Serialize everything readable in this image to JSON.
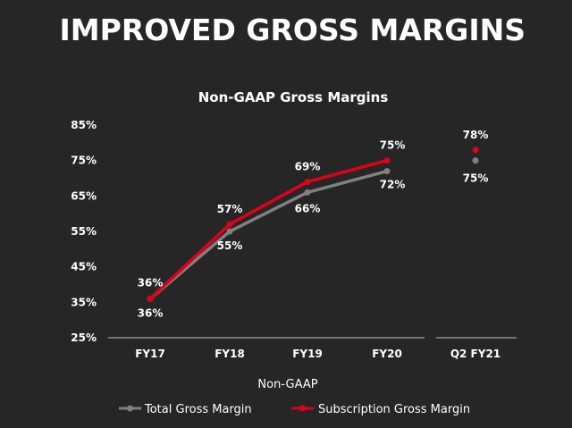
{
  "slide": {
    "title": "IMPROVED GROSS MARGINS"
  },
  "chart_data": {
    "type": "line",
    "title": "Non-GAAP Gross Margins",
    "xlabel": "Non-GAAP",
    "ylabel": "",
    "categories": [
      "FY17",
      "FY18",
      "FY19",
      "FY20",
      "Q2 FY21"
    ],
    "ylim": [
      25,
      85
    ],
    "yticks": [
      "85%",
      "75%",
      "65%",
      "55%",
      "45%",
      "35%",
      "25%"
    ],
    "legend_position": "bottom",
    "grid": false,
    "series": [
      {
        "name": "Total Gross Margin",
        "color": "#808080",
        "values": [
          36,
          55,
          66,
          72,
          75
        ],
        "labels": [
          "36%",
          "55%",
          "66%",
          "72%",
          "75%"
        ],
        "label_position": "below"
      },
      {
        "name": "Subscription Gross Margin",
        "color": "#e0001b",
        "values": [
          36,
          57,
          69,
          75,
          78
        ],
        "labels": [
          "36%",
          "57%",
          "69%",
          "75%",
          "78%"
        ],
        "label_position": "above"
      }
    ]
  }
}
